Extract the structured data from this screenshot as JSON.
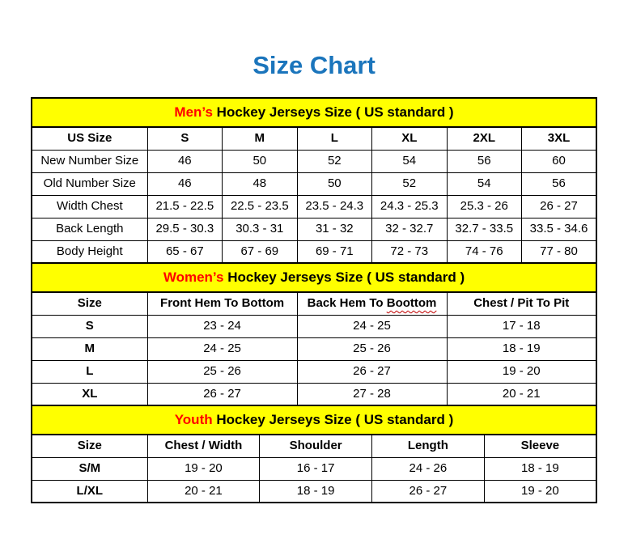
{
  "page": {
    "title": "Size Chart"
  },
  "colors": {
    "title_blue": "#1b75bc",
    "banner_yellow": "#ffff00",
    "banner_red": "#ff0000",
    "squiggle_red": "#c00000",
    "border_black": "#000000"
  },
  "tables": [
    {
      "id": "mens",
      "banner": {
        "highlight": "Men’s",
        "rest": " Hockey Jerseys Size ( US standard )"
      },
      "columns": [
        "US Size",
        "S",
        "M",
        "L",
        "XL",
        "2XL",
        "3XL"
      ],
      "rows": [
        {
          "label": "New Number Size",
          "values": [
            "46",
            "50",
            "52",
            "54",
            "56",
            "60"
          ]
        },
        {
          "label": "Old Number Size",
          "values": [
            "46",
            "48",
            "50",
            "52",
            "54",
            "56"
          ]
        },
        {
          "label": "Width Chest",
          "values": [
            "21.5 - 22.5",
            "22.5 - 23.5",
            "23.5 - 24.3",
            "24.3 - 25.3",
            "25.3 - 26",
            "26 - 27"
          ]
        },
        {
          "label": "Back Length",
          "values": [
            "29.5 - 30.3",
            "30.3 - 31",
            "31 - 32",
            "32 - 32.7",
            "32.7 - 33.5",
            "33.5 - 34.6"
          ]
        },
        {
          "label": "Body Height",
          "values": [
            "65 - 67",
            "67 - 69",
            "69 - 71",
            "72 - 73",
            "74 - 76",
            "77 - 80"
          ]
        }
      ]
    },
    {
      "id": "womens",
      "banner": {
        "highlight": "Women’s",
        "rest": " Hockey Jerseys Size ( US standard )"
      },
      "columns": [
        "Size",
        "Front Hem To Bottom",
        {
          "label": "Back Hem To ",
          "squiggle": "Boottom"
        },
        "Chest / Pit To Pit"
      ],
      "rows": [
        {
          "label": "S",
          "values": [
            "23 - 24",
            "24 - 25",
            "17 - 18"
          ]
        },
        {
          "label": "M",
          "values": [
            "24 - 25",
            "25 - 26",
            "18 - 19"
          ]
        },
        {
          "label": "L",
          "values": [
            "25 - 26",
            "26 - 27",
            "19 - 20"
          ]
        },
        {
          "label": "XL",
          "values": [
            "26 - 27",
            "27 - 28",
            "20 - 21"
          ]
        }
      ]
    },
    {
      "id": "youth",
      "banner": {
        "highlight": "Youth",
        "rest": " Hockey Jerseys Size ( US standard )"
      },
      "columns": [
        "Size",
        "Chest / Width",
        "Shoulder",
        "Length",
        "Sleeve"
      ],
      "rows": [
        {
          "label": "S/M",
          "values": [
            "19 - 20",
            "16 - 17",
            "24 - 26",
            "18 - 19"
          ]
        },
        {
          "label": "L/XL",
          "values": [
            "20 - 21",
            "18 - 19",
            "26 - 27",
            "19 - 20"
          ]
        }
      ]
    }
  ]
}
